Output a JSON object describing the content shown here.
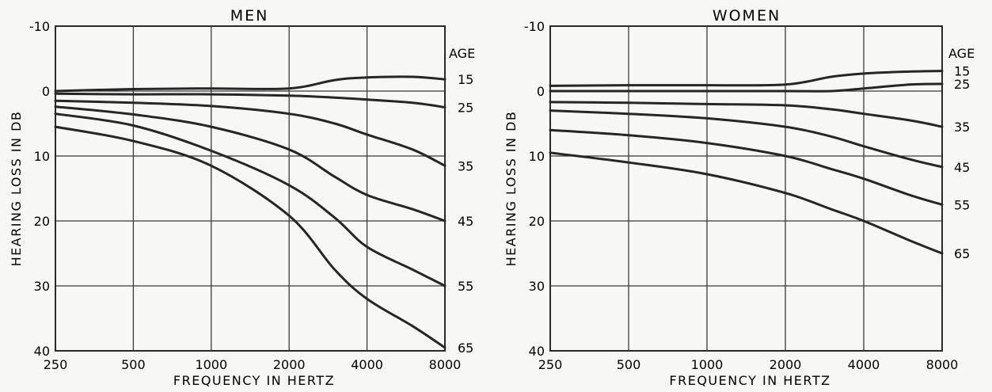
{
  "chart_data": [
    {
      "type": "line",
      "title": "MEN",
      "xlabel": "FREQUENCY IN HERTZ",
      "ylabel": "HEARING LOSS IN DB",
      "x_scale": "log",
      "x_ticks": [
        "250",
        "500",
        "1000",
        "2000",
        "4000",
        "8000"
      ],
      "y_ticks": [
        "-10",
        "0",
        "10",
        "20",
        "30",
        "40"
      ],
      "ylim": [
        40,
        -10
      ],
      "legend_title": "AGE",
      "grid": true,
      "x": [
        250,
        500,
        1000,
        2000,
        3000,
        4000,
        6000,
        8000
      ],
      "series": [
        {
          "name": "15",
          "values": [
            0,
            -0.3,
            -0.4,
            -0.4,
            -1.7,
            -2.1,
            -2.2,
            -1.8
          ]
        },
        {
          "name": "25",
          "values": [
            0.4,
            0.5,
            0.5,
            0.7,
            1,
            1.3,
            1.8,
            2.5
          ]
        },
        {
          "name": "35",
          "values": [
            1.5,
            1.8,
            2.3,
            3.5,
            5,
            6.7,
            9,
            11.5
          ]
        },
        {
          "name": "45",
          "values": [
            2.4,
            3.6,
            5.5,
            9,
            13.2,
            16,
            18.2,
            20
          ]
        },
        {
          "name": "55",
          "values": [
            3.5,
            5.3,
            9.2,
            14.5,
            19.5,
            24,
            27.5,
            30
          ]
        },
        {
          "name": "65",
          "values": [
            5.5,
            7.7,
            11.5,
            19.2,
            27.5,
            32,
            36.2,
            39.5
          ]
        }
      ]
    },
    {
      "type": "line",
      "title": "WOMEN",
      "xlabel": "FREQUENCY IN HERTZ",
      "ylabel": "HEARING LOSS IN DB",
      "x_scale": "log",
      "x_ticks": [
        "250",
        "500",
        "1000",
        "2000",
        "4000",
        "8000"
      ],
      "y_ticks": [
        "-10",
        "0",
        "10",
        "20",
        "30",
        "40"
      ],
      "ylim": [
        40,
        -10
      ],
      "legend_title": "AGE",
      "grid": true,
      "x": [
        250,
        500,
        1000,
        2000,
        3000,
        4000,
        6000,
        8000
      ],
      "series": [
        {
          "name": "15",
          "values": [
            -0.8,
            -0.9,
            -0.9,
            -1,
            -2.2,
            -2.7,
            -3,
            -3.1
          ]
        },
        {
          "name": "25",
          "values": [
            0,
            0,
            0,
            0,
            0,
            -0.4,
            -1,
            -1.1
          ]
        },
        {
          "name": "35",
          "values": [
            1.7,
            1.8,
            2,
            2.2,
            2.8,
            3.5,
            4.5,
            5.5
          ]
        },
        {
          "name": "45",
          "values": [
            3,
            3.5,
            4.2,
            5.5,
            7,
            8.5,
            10.5,
            11.7
          ]
        },
        {
          "name": "55",
          "values": [
            6,
            6.8,
            8,
            10,
            12,
            13.5,
            16,
            17.5
          ]
        },
        {
          "name": "65",
          "values": [
            9.5,
            11,
            12.8,
            15.7,
            18.2,
            20,
            23,
            25
          ]
        }
      ]
    }
  ]
}
